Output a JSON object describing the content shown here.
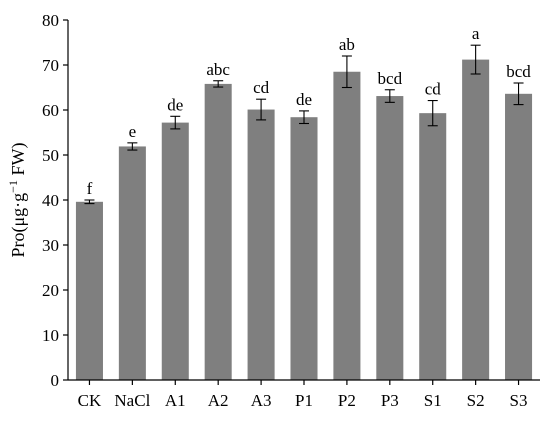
{
  "chart_data": {
    "type": "bar",
    "categories": [
      "CK",
      "NaCl",
      "A1",
      "A2",
      "A3",
      "P1",
      "P2",
      "P3",
      "S1",
      "S2",
      "S3"
    ],
    "values": [
      39.6,
      51.9,
      57.2,
      65.8,
      60.1,
      58.4,
      68.5,
      63.1,
      59.3,
      71.2,
      63.6
    ],
    "errors": [
      0.4,
      0.8,
      1.4,
      0.7,
      2.3,
      1.4,
      3.5,
      1.4,
      2.8,
      3.2,
      2.4
    ],
    "significance_labels": [
      "f",
      "e",
      "de",
      "abc",
      "cd",
      "de",
      "ab",
      "bcd",
      "cd",
      "a",
      "bcd"
    ],
    "title": "",
    "xlabel": "",
    "ylabel": "Pro(μg·g",
    "ylabel_superscript": "−1",
    "ylabel_suffix": " FW)",
    "ylim": [
      0,
      80
    ],
    "yticks": [
      0,
      10,
      20,
      30,
      40,
      50,
      60,
      70,
      80
    ],
    "grid": false,
    "bar_color": "#7f7f7f"
  }
}
